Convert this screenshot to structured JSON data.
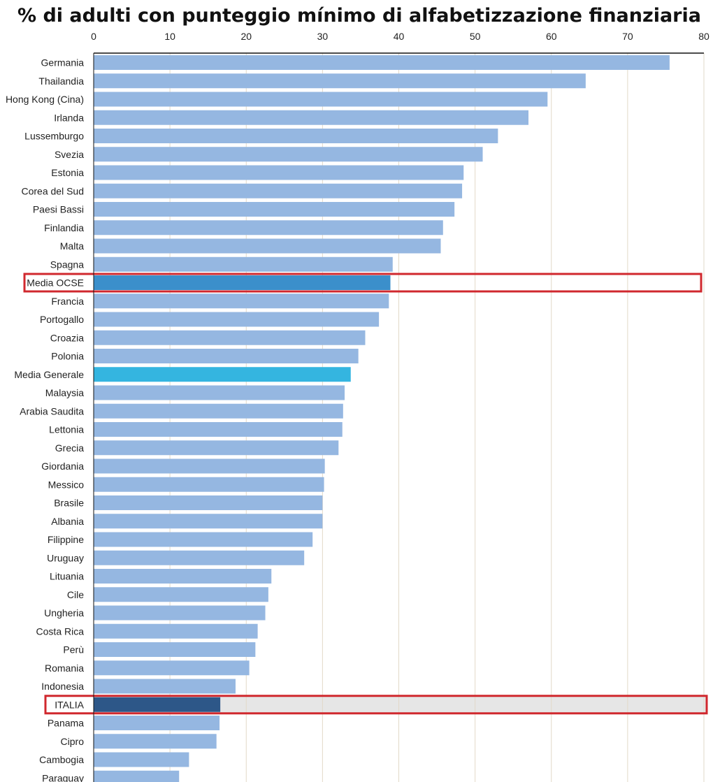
{
  "chart_data": {
    "type": "bar",
    "orientation": "horizontal",
    "title": "% di adulti con punteggio mínimo di alfabetizzazione finanziaria",
    "xlabel": "",
    "ylabel": "",
    "xlim": [
      0,
      80
    ],
    "xticks": [
      0,
      10,
      20,
      30,
      40,
      50,
      60,
      70,
      80
    ],
    "grid": true,
    "legend": "none",
    "categories": [
      "Germania",
      "Thailandia",
      "Hong Kong (Cina)",
      "Irlanda",
      "Lussemburgo",
      "Svezia",
      "Estonia",
      "Corea del Sud",
      "Paesi Bassi",
      "Finlandia",
      "Malta",
      "Spagna",
      "Media OCSE",
      "Francia",
      "Portogallo",
      "Croazia",
      "Polonia",
      "Media Generale",
      "Malaysia",
      "Arabia Saudita",
      "Lettonia",
      "Grecia",
      "Giordania",
      "Messico",
      "Brasile",
      "Albania",
      "Filippine",
      "Uruguay",
      "Lituania",
      "Cile",
      "Ungheria",
      "Costa Rica",
      "Perù",
      "Romania",
      "Indonesia",
      "ITALIA",
      "Panama",
      "Cipro",
      "Cambogia",
      "Paraguay"
    ],
    "values": [
      75.5,
      64.5,
      59.5,
      57,
      53,
      51,
      48.5,
      48.3,
      47.3,
      45.8,
      45.5,
      39.2,
      38.9,
      38.7,
      37.4,
      35.6,
      34.7,
      33.7,
      32.9,
      32.7,
      32.6,
      32.1,
      30.3,
      30.2,
      30,
      30,
      28.7,
      27.6,
      23.3,
      22.9,
      22.5,
      21.5,
      21.2,
      20.4,
      18.6,
      16.6,
      16.5,
      16.1,
      12.5,
      11.2
    ],
    "colors": {
      "default": "#95b7e1",
      "highlight_ocse": "#3b8fcb",
      "highlight_generale": "#34b5e0",
      "highlight_italia": "#2d5788",
      "row_shade": "#e6e6e6",
      "box": "#d0282e",
      "grid": "#e2d9c8",
      "axis": "#111111"
    },
    "highlights": {
      "Media OCSE": "highlight_ocse",
      "Media Generale": "highlight_generale",
      "ITALIA": "highlight_italia"
    },
    "boxed": [
      "Media OCSE",
      "ITALIA"
    ],
    "shaded_rows": [
      "ITALIA"
    ]
  }
}
